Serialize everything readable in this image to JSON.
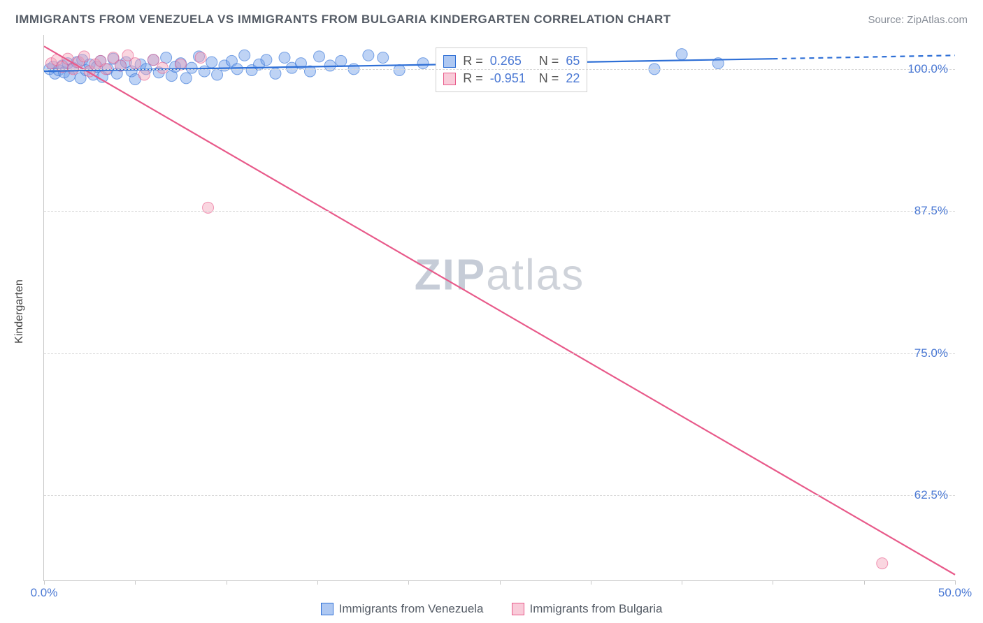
{
  "header": {
    "title": "IMMIGRANTS FROM VENEZUELA VS IMMIGRANTS FROM BULGARIA KINDERGARTEN CORRELATION CHART",
    "source": "Source: ZipAtlas.com"
  },
  "ylabel": "Kindergarten",
  "watermark": {
    "a": "ZIP",
    "b": "atlas"
  },
  "chart": {
    "type": "scatter",
    "background_color": "#ffffff",
    "grid_color": "#d8d8d8",
    "axis_color": "#c8c8c8",
    "text_color": "#555c66",
    "value_color": "#4b79d4",
    "xlim": [
      0,
      50
    ],
    "ylim": [
      55,
      103
    ],
    "xticks": [
      0,
      5,
      10,
      15,
      20,
      25,
      30,
      35,
      40,
      45,
      50
    ],
    "xtick_labels": {
      "0": "0.0%",
      "50": "50.0%"
    },
    "yticks": [
      62.5,
      75.0,
      87.5,
      100.0
    ],
    "ytick_labels": [
      "62.5%",
      "75.0%",
      "87.5%",
      "100.0%"
    ],
    "marker_radius": 8,
    "marker_opacity": 0.45,
    "line_width": 2.2
  },
  "series": [
    {
      "name": "Immigrants from Venezuela",
      "color_fill": "#6f9de8",
      "color_stroke": "#2e6fd6",
      "R": "0.265",
      "N": "65",
      "trend": {
        "x1": 0,
        "y1": 99.8,
        "x2": 40,
        "y2": 100.9,
        "dash_after_x": 40,
        "x3": 50,
        "y3": 101.2
      },
      "points": [
        [
          0.3,
          100.0
        ],
        [
          0.5,
          100.2
        ],
        [
          0.6,
          99.6
        ],
        [
          0.8,
          99.9
        ],
        [
          1.0,
          100.3
        ],
        [
          1.1,
          99.7
        ],
        [
          1.3,
          100.5
        ],
        [
          1.4,
          99.4
        ],
        [
          1.6,
          100.1
        ],
        [
          1.8,
          100.6
        ],
        [
          2.0,
          99.2
        ],
        [
          2.1,
          100.8
        ],
        [
          2.3,
          99.9
        ],
        [
          2.5,
          100.4
        ],
        [
          2.7,
          99.5
        ],
        [
          2.9,
          100.2
        ],
        [
          3.1,
          100.7
        ],
        [
          3.2,
          99.3
        ],
        [
          3.5,
          100.0
        ],
        [
          3.8,
          100.9
        ],
        [
          4.0,
          99.6
        ],
        [
          4.2,
          100.3
        ],
        [
          4.5,
          100.6
        ],
        [
          4.8,
          99.8
        ],
        [
          5.0,
          99.1
        ],
        [
          5.3,
          100.4
        ],
        [
          5.6,
          100.0
        ],
        [
          6.0,
          100.8
        ],
        [
          6.3,
          99.7
        ],
        [
          6.7,
          101.0
        ],
        [
          7.0,
          99.4
        ],
        [
          7.2,
          100.2
        ],
        [
          7.5,
          100.5
        ],
        [
          7.8,
          99.2
        ],
        [
          8.1,
          100.1
        ],
        [
          8.5,
          101.1
        ],
        [
          8.8,
          99.8
        ],
        [
          9.2,
          100.6
        ],
        [
          9.5,
          99.5
        ],
        [
          9.9,
          100.3
        ],
        [
          10.3,
          100.7
        ],
        [
          10.6,
          100.0
        ],
        [
          11.0,
          101.2
        ],
        [
          11.4,
          99.9
        ],
        [
          11.8,
          100.4
        ],
        [
          12.2,
          100.8
        ],
        [
          12.7,
          99.6
        ],
        [
          13.2,
          101.0
        ],
        [
          13.6,
          100.1
        ],
        [
          14.1,
          100.5
        ],
        [
          14.6,
          99.8
        ],
        [
          15.1,
          101.1
        ],
        [
          15.7,
          100.3
        ],
        [
          16.3,
          100.7
        ],
        [
          17.0,
          100.0
        ],
        [
          17.8,
          101.2
        ],
        [
          18.6,
          101.0
        ],
        [
          19.5,
          99.9
        ],
        [
          20.8,
          100.5
        ],
        [
          22.0,
          99.0
        ],
        [
          23.5,
          100.8
        ],
        [
          26.0,
          100.2
        ],
        [
          33.5,
          100.0
        ],
        [
          35.0,
          101.3
        ],
        [
          37.0,
          100.5
        ]
      ]
    },
    {
      "name": "Immigrants from Bulgaria",
      "color_fill": "#f5a3bb",
      "color_stroke": "#e85a8a",
      "R": "-0.951",
      "N": "22",
      "trend": {
        "x1": 0,
        "y1": 102.0,
        "x2": 50,
        "y2": 55.5
      },
      "points": [
        [
          0.4,
          100.5
        ],
        [
          0.7,
          100.8
        ],
        [
          1.0,
          100.2
        ],
        [
          1.3,
          100.9
        ],
        [
          1.6,
          100.0
        ],
        [
          1.9,
          100.6
        ],
        [
          2.2,
          101.1
        ],
        [
          2.5,
          99.8
        ],
        [
          2.8,
          100.4
        ],
        [
          3.1,
          100.7
        ],
        [
          3.4,
          100.0
        ],
        [
          3.8,
          101.0
        ],
        [
          4.2,
          100.3
        ],
        [
          4.6,
          101.2
        ],
        [
          5.0,
          100.5
        ],
        [
          5.5,
          99.5
        ],
        [
          6.0,
          100.8
        ],
        [
          6.5,
          100.1
        ],
        [
          7.5,
          100.4
        ],
        [
          8.6,
          101.0
        ],
        [
          9.0,
          87.8
        ],
        [
          46.0,
          56.5
        ]
      ]
    }
  ],
  "stats_labels": {
    "R": "R =",
    "N": "N ="
  },
  "legend": {
    "venezuela": "Immigrants from Venezuela",
    "bulgaria": "Immigrants from Bulgaria"
  }
}
